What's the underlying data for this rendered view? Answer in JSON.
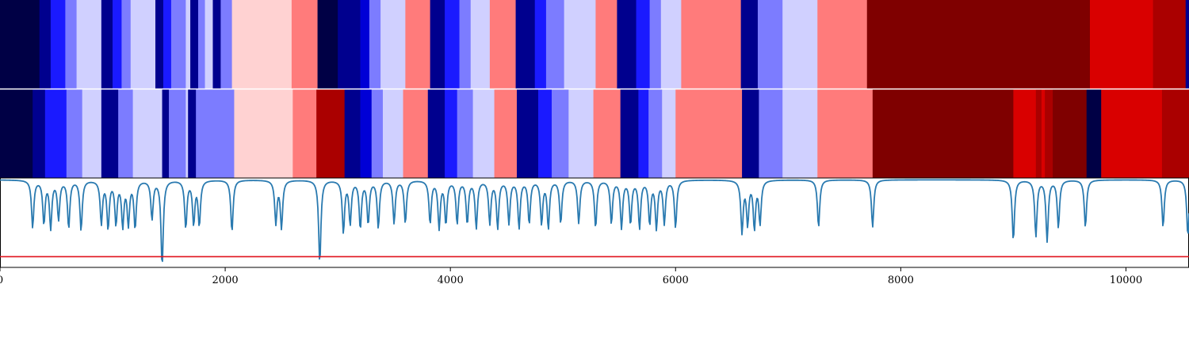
{
  "chart_data": [
    {
      "type": "heatmap",
      "name": "segment-strip-top",
      "palette": {
        "deep_navy": "#000045",
        "navy": "#00008e",
        "blue": "#0000d6",
        "bright_blue": "#1a1aff",
        "periwinkle": "#7c7cff",
        "lavender": "#d0d0ff",
        "pink": "#ffd2d2",
        "salmon": "#ff7b7b",
        "red": "#d90000",
        "crimson": "#aa0000",
        "maroon": "#7f0000"
      },
      "segments": [
        {
          "start": 0,
          "end": 350,
          "color": "#000045"
        },
        {
          "start": 350,
          "end": 450,
          "color": "#00008e"
        },
        {
          "start": 450,
          "end": 580,
          "color": "#1a1aff"
        },
        {
          "start": 580,
          "end": 680,
          "color": "#7c7cff"
        },
        {
          "start": 680,
          "end": 900,
          "color": "#d0d0ff"
        },
        {
          "start": 900,
          "end": 1000,
          "color": "#00008e"
        },
        {
          "start": 1000,
          "end": 1080,
          "color": "#1a1aff"
        },
        {
          "start": 1080,
          "end": 1160,
          "color": "#7c7cff"
        },
        {
          "start": 1160,
          "end": 1380,
          "color": "#d0d0ff"
        },
        {
          "start": 1380,
          "end": 1450,
          "color": "#00008e"
        },
        {
          "start": 1450,
          "end": 1520,
          "color": "#1a1aff"
        },
        {
          "start": 1520,
          "end": 1650,
          "color": "#7c7cff"
        },
        {
          "start": 1650,
          "end": 1690,
          "color": "#d0d0ff"
        },
        {
          "start": 1690,
          "end": 1760,
          "color": "#00008e"
        },
        {
          "start": 1760,
          "end": 1820,
          "color": "#7c7cff"
        },
        {
          "start": 1820,
          "end": 1890,
          "color": "#d0d0ff"
        },
        {
          "start": 1890,
          "end": 1960,
          "color": "#00008e"
        },
        {
          "start": 1960,
          "end": 2060,
          "color": "#7c7cff"
        },
        {
          "start": 2060,
          "end": 2590,
          "color": "#ffd2d2"
        },
        {
          "start": 2590,
          "end": 2820,
          "color": "#ff7b7b"
        },
        {
          "start": 2820,
          "end": 3000,
          "color": "#000045"
        },
        {
          "start": 3000,
          "end": 3200,
          "color": "#00008e"
        },
        {
          "start": 3200,
          "end": 3280,
          "color": "#0000d6"
        },
        {
          "start": 3280,
          "end": 3380,
          "color": "#7c7cff"
        },
        {
          "start": 3380,
          "end": 3600,
          "color": "#d0d0ff"
        },
        {
          "start": 3600,
          "end": 3820,
          "color": "#ff7b7b"
        },
        {
          "start": 3820,
          "end": 3950,
          "color": "#00008e"
        },
        {
          "start": 3950,
          "end": 4080,
          "color": "#1a1aff"
        },
        {
          "start": 4080,
          "end": 4180,
          "color": "#7c7cff"
        },
        {
          "start": 4180,
          "end": 4350,
          "color": "#d0d0ff"
        },
        {
          "start": 4350,
          "end": 4580,
          "color": "#ff7b7b"
        },
        {
          "start": 4580,
          "end": 4750,
          "color": "#00008e"
        },
        {
          "start": 4750,
          "end": 4850,
          "color": "#1a1aff"
        },
        {
          "start": 4850,
          "end": 5010,
          "color": "#7c7cff"
        },
        {
          "start": 5010,
          "end": 5290,
          "color": "#d0d0ff"
        },
        {
          "start": 5290,
          "end": 5480,
          "color": "#ff7b7b"
        },
        {
          "start": 5480,
          "end": 5650,
          "color": "#00008e"
        },
        {
          "start": 5650,
          "end": 5770,
          "color": "#1a1aff"
        },
        {
          "start": 5770,
          "end": 5870,
          "color": "#7c7cff"
        },
        {
          "start": 5870,
          "end": 6050,
          "color": "#d0d0ff"
        },
        {
          "start": 6050,
          "end": 6580,
          "color": "#ff7b7b"
        },
        {
          "start": 6580,
          "end": 6730,
          "color": "#00008e"
        },
        {
          "start": 6730,
          "end": 6950,
          "color": "#7c7cff"
        },
        {
          "start": 6950,
          "end": 7260,
          "color": "#d0d0ff"
        },
        {
          "start": 7260,
          "end": 7700,
          "color": "#ff7b7b"
        },
        {
          "start": 7700,
          "end": 9680,
          "color": "#7f0000"
        },
        {
          "start": 9680,
          "end": 10240,
          "color": "#d90000"
        },
        {
          "start": 10240,
          "end": 10530,
          "color": "#aa0000"
        },
        {
          "start": 10530,
          "end": 10560,
          "color": "#00008e"
        }
      ]
    },
    {
      "type": "heatmap",
      "name": "segment-strip-bottom",
      "segments": [
        {
          "start": 0,
          "end": 290,
          "color": "#000045"
        },
        {
          "start": 290,
          "end": 400,
          "color": "#00008e"
        },
        {
          "start": 400,
          "end": 590,
          "color": "#1a1aff"
        },
        {
          "start": 590,
          "end": 730,
          "color": "#7c7cff"
        },
        {
          "start": 730,
          "end": 900,
          "color": "#d0d0ff"
        },
        {
          "start": 900,
          "end": 1050,
          "color": "#00008e"
        },
        {
          "start": 1050,
          "end": 1180,
          "color": "#7c7cff"
        },
        {
          "start": 1180,
          "end": 1440,
          "color": "#d0d0ff"
        },
        {
          "start": 1440,
          "end": 1500,
          "color": "#00008e"
        },
        {
          "start": 1500,
          "end": 1650,
          "color": "#7c7cff"
        },
        {
          "start": 1650,
          "end": 1670,
          "color": "#d0d0ff"
        },
        {
          "start": 1670,
          "end": 1740,
          "color": "#00008e"
        },
        {
          "start": 1740,
          "end": 2080,
          "color": "#7c7cff"
        },
        {
          "start": 2080,
          "end": 2600,
          "color": "#ffd2d2"
        },
        {
          "start": 2600,
          "end": 2810,
          "color": "#ff7b7b"
        },
        {
          "start": 2810,
          "end": 3060,
          "color": "#aa0000"
        },
        {
          "start": 3060,
          "end": 3200,
          "color": "#00008e"
        },
        {
          "start": 3200,
          "end": 3300,
          "color": "#0000d6"
        },
        {
          "start": 3300,
          "end": 3400,
          "color": "#7c7cff"
        },
        {
          "start": 3400,
          "end": 3580,
          "color": "#d0d0ff"
        },
        {
          "start": 3580,
          "end": 3800,
          "color": "#ff7b7b"
        },
        {
          "start": 3800,
          "end": 3950,
          "color": "#00008e"
        },
        {
          "start": 3950,
          "end": 4060,
          "color": "#1a1aff"
        },
        {
          "start": 4060,
          "end": 4200,
          "color": "#7c7cff"
        },
        {
          "start": 4200,
          "end": 4390,
          "color": "#d0d0ff"
        },
        {
          "start": 4390,
          "end": 4590,
          "color": "#ff7b7b"
        },
        {
          "start": 4590,
          "end": 4780,
          "color": "#00008e"
        },
        {
          "start": 4780,
          "end": 4900,
          "color": "#1a1aff"
        },
        {
          "start": 4900,
          "end": 5050,
          "color": "#7c7cff"
        },
        {
          "start": 5050,
          "end": 5270,
          "color": "#d0d0ff"
        },
        {
          "start": 5270,
          "end": 5510,
          "color": "#ff7b7b"
        },
        {
          "start": 5510,
          "end": 5670,
          "color": "#00008e"
        },
        {
          "start": 5670,
          "end": 5760,
          "color": "#1a1aff"
        },
        {
          "start": 5760,
          "end": 5880,
          "color": "#7c7cff"
        },
        {
          "start": 5880,
          "end": 6000,
          "color": "#d0d0ff"
        },
        {
          "start": 6000,
          "end": 6590,
          "color": "#ff7b7b"
        },
        {
          "start": 6590,
          "end": 6740,
          "color": "#00008e"
        },
        {
          "start": 6740,
          "end": 6950,
          "color": "#7c7cff"
        },
        {
          "start": 6950,
          "end": 7260,
          "color": "#d0d0ff"
        },
        {
          "start": 7260,
          "end": 7750,
          "color": "#ff7b7b"
        },
        {
          "start": 7750,
          "end": 9000,
          "color": "#7f0000"
        },
        {
          "start": 9000,
          "end": 9200,
          "color": "#d90000"
        },
        {
          "start": 9200,
          "end": 9250,
          "color": "#aa0000"
        },
        {
          "start": 9250,
          "end": 9280,
          "color": "#d90000"
        },
        {
          "start": 9280,
          "end": 9350,
          "color": "#aa0000"
        },
        {
          "start": 9350,
          "end": 9650,
          "color": "#7f0000"
        },
        {
          "start": 9650,
          "end": 9780,
          "color": "#000045"
        },
        {
          "start": 9780,
          "end": 10320,
          "color": "#d90000"
        },
        {
          "start": 10320,
          "end": 10560,
          "color": "#aa0000"
        }
      ]
    },
    {
      "type": "line",
      "name": "signal-trace",
      "color": "#2a7ab0",
      "threshold": {
        "value": 0.12,
        "color": "#e0141e"
      },
      "baseline": 0.98,
      "ylim": [
        0,
        1
      ],
      "xlim": [
        0,
        10560
      ],
      "xticks": [
        0,
        2000,
        4000,
        6000,
        8000,
        10000
      ],
      "tick_labels": [
        "0",
        "2000",
        "4000",
        "6000",
        "8000",
        "10000"
      ],
      "dips": [
        [
          290,
          0.45
        ],
        [
          390,
          0.5
        ],
        [
          450,
          0.45
        ],
        [
          520,
          0.55
        ],
        [
          610,
          0.45
        ],
        [
          720,
          0.42
        ],
        [
          900,
          0.5
        ],
        [
          960,
          0.45
        ],
        [
          1030,
          0.5
        ],
        [
          1090,
          0.48
        ],
        [
          1140,
          0.5
        ],
        [
          1200,
          0.45
        ],
        [
          1350,
          0.55
        ],
        [
          1440,
          0.02
        ],
        [
          1650,
          0.45
        ],
        [
          1720,
          0.5
        ],
        [
          1770,
          0.48
        ],
        [
          2060,
          0.4
        ],
        [
          2450,
          0.5
        ],
        [
          2500,
          0.45
        ],
        [
          2840,
          0.05
        ],
        [
          3050,
          0.4
        ],
        [
          3110,
          0.5
        ],
        [
          3200,
          0.45
        ],
        [
          3270,
          0.5
        ],
        [
          3360,
          0.45
        ],
        [
          3500,
          0.5
        ],
        [
          3600,
          0.5
        ],
        [
          3820,
          0.5
        ],
        [
          3900,
          0.45
        ],
        [
          3960,
          0.5
        ],
        [
          4060,
          0.5
        ],
        [
          4150,
          0.5
        ],
        [
          4230,
          0.45
        ],
        [
          4350,
          0.5
        ],
        [
          4420,
          0.45
        ],
        [
          4520,
          0.5
        ],
        [
          4610,
          0.45
        ],
        [
          4700,
          0.5
        ],
        [
          4810,
          0.5
        ],
        [
          4870,
          0.45
        ],
        [
          4980,
          0.5
        ],
        [
          5140,
          0.5
        ],
        [
          5290,
          0.45
        ],
        [
          5430,
          0.5
        ],
        [
          5520,
          0.45
        ],
        [
          5600,
          0.5
        ],
        [
          5680,
          0.45
        ],
        [
          5770,
          0.5
        ],
        [
          5830,
          0.45
        ],
        [
          5900,
          0.5
        ],
        [
          6000,
          0.45
        ],
        [
          6590,
          0.4
        ],
        [
          6640,
          0.5
        ],
        [
          6700,
          0.45
        ],
        [
          6750,
          0.5
        ],
        [
          7270,
          0.45
        ],
        [
          7750,
          0.45
        ],
        [
          9000,
          0.3
        ],
        [
          9200,
          0.35
        ],
        [
          9300,
          0.3
        ],
        [
          9400,
          0.45
        ],
        [
          9640,
          0.45
        ],
        [
          10330,
          0.45
        ],
        [
          10550,
          0.35
        ]
      ]
    }
  ]
}
